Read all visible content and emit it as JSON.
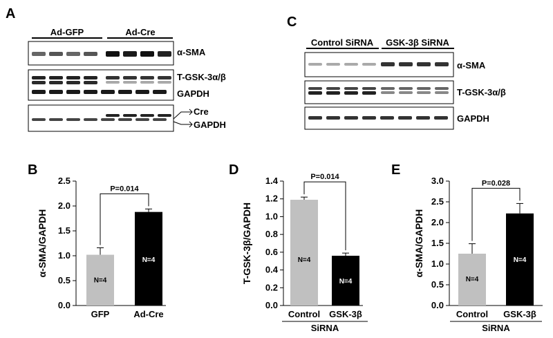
{
  "blots": {
    "A": {
      "letter": "A",
      "groups": [
        "Ad-GFP",
        "Ad-Cre"
      ],
      "labels": [
        "α-SMA",
        "T-GSK-3α/β",
        "GAPDH",
        "Cre",
        "GAPDH"
      ]
    },
    "C": {
      "letter": "C",
      "groups": [
        "Control SiRNA",
        "GSK-3β SiRNA"
      ],
      "labels": [
        "α-SMA",
        "T-GSK-3α/β",
        "GAPDH"
      ]
    }
  },
  "chart_data": [
    {
      "panel": "B",
      "type": "bar",
      "ylabel": "α-SMA/GAPDH",
      "categories": [
        "GFP",
        "Ad-Cre"
      ],
      "values": [
        1.02,
        1.88
      ],
      "errors": [
        0.14,
        0.06
      ],
      "bar_colors": [
        "#c0c0c0",
        "#000000"
      ],
      "n_labels": [
        "N=4",
        "N=4"
      ],
      "ylim": [
        0,
        2.5
      ],
      "yticks": [
        "0.0",
        "0.5",
        "1.0",
        "1.5",
        "2.0",
        "2.5"
      ],
      "pvalue": "P=0.014",
      "xgroup_label": ""
    },
    {
      "panel": "D",
      "type": "bar",
      "ylabel": "T-GSK-3β/GAPDH",
      "categories": [
        "Control",
        "GSK-3β"
      ],
      "values": [
        1.19,
        0.56
      ],
      "errors": [
        0.03,
        0.03
      ],
      "bar_colors": [
        "#c0c0c0",
        "#000000"
      ],
      "n_labels": [
        "N=4",
        "N=4"
      ],
      "ylim": [
        0,
        1.4
      ],
      "yticks": [
        "0.0",
        "0.2",
        "0.4",
        "0.6",
        "0.8",
        "1.0",
        "1.2",
        "1.4"
      ],
      "pvalue": "P=0.014",
      "xgroup_label": "SiRNA"
    },
    {
      "panel": "E",
      "type": "bar",
      "ylabel": "α-SMA/GAPDH",
      "categories": [
        "Control",
        "GSK-3β"
      ],
      "values": [
        1.25,
        2.22
      ],
      "errors": [
        0.24,
        0.24
      ],
      "bar_colors": [
        "#c0c0c0",
        "#000000"
      ],
      "n_labels": [
        "N=4",
        "N=4"
      ],
      "ylim": [
        0,
        3.0
      ],
      "yticks": [
        "0.0",
        "0.5",
        "1.0",
        "1.5",
        "2.0",
        "2.5",
        "3.0"
      ],
      "pvalue": "P=0.028",
      "xgroup_label": "SiRNA"
    }
  ]
}
